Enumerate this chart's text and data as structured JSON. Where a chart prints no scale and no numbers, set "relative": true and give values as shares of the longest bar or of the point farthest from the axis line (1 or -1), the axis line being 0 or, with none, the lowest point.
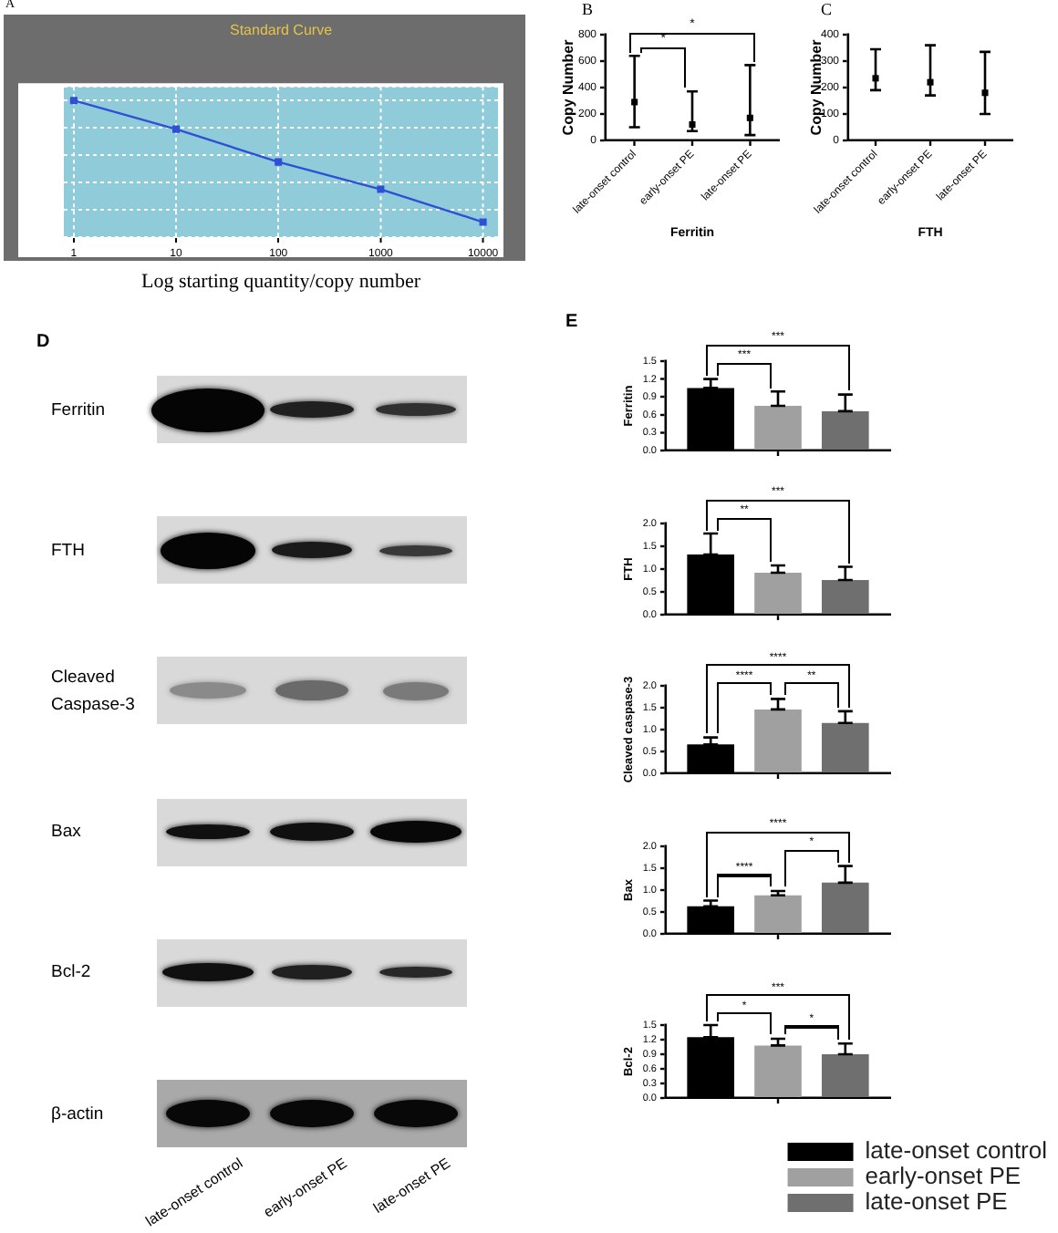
{
  "chart_data": [
    {
      "type": "line",
      "title": "A",
      "subtitle": "Standard Curve",
      "xlabel": "Log starting quantity/copy number",
      "x": [
        1,
        10,
        100,
        1000,
        10000
      ],
      "values": [
        1,
        0.79,
        0.55,
        0.35,
        0.11
      ],
      "color": "#2f4fd6",
      "relative": true,
      "xlim": [
        0.8,
        14000
      ],
      "xticks": [
        1,
        10,
        100,
        1000,
        10000
      ],
      "log": "x",
      "grid": true,
      "marker": "square"
    },
    {
      "type": "scatter",
      "title": "B",
      "xlabel": "Ferritin",
      "ylabel": "Copy Number",
      "categories": [
        "late-onset control",
        "early-onset PE",
        "late-onset PE"
      ],
      "values": [
        290,
        120,
        170
      ],
      "errors": [
        [
          100,
          640
        ],
        [
          70,
          370
        ],
        [
          40,
          570
        ]
      ],
      "color": "#000000",
      "ylim": [
        0,
        800
      ],
      "yticks": [
        0,
        200,
        400,
        600,
        800
      ],
      "marker": "square",
      "annotations": [
        "*",
        "*"
      ]
    },
    {
      "type": "scatter",
      "title": "C",
      "xlabel": "FTH",
      "ylabel": "Copy Number",
      "categories": [
        "late-onset control",
        "early-onset PE",
        "late-onset PE"
      ],
      "values": [
        235,
        220,
        180
      ],
      "errors": [
        [
          190,
          345
        ],
        [
          170,
          360
        ],
        [
          100,
          335
        ]
      ],
      "color": "#000000",
      "ylim": [
        0,
        400
      ],
      "yticks": [
        0,
        100,
        200,
        300,
        400
      ],
      "marker": "square"
    },
    {
      "type": "other",
      "title": "D",
      "categories": [
        "late-onset control",
        "early-onset PE",
        "late-onset PE"
      ],
      "y_categories": [
        "Ferritin",
        "FTH",
        "Cleaved Caspase-3",
        "Bax",
        "Bcl-2",
        "β-actin"
      ]
    },
    {
      "type": "bar",
      "title": "E",
      "ylabel": "Ferritin",
      "categories": [
        null
      ],
      "series": [
        {
          "color": "#000000",
          "values": [
            1.05
          ],
          "errors": [
            [
              1.05,
              1.2
            ]
          ]
        },
        {
          "color": "#a0a0a0",
          "values": [
            0.75
          ],
          "errors": [
            [
              0.75,
              0.99
            ]
          ]
        },
        {
          "color": "#6f6f6f",
          "values": [
            0.66
          ],
          "errors": [
            [
              0.66,
              0.94
            ]
          ]
        }
      ],
      "ylim": [
        0,
        1.5
      ],
      "yticks": [
        {
          "value": 0,
          "label": "0.0"
        },
        0.3,
        0.6,
        0.9,
        1.2,
        1.5
      ],
      "annotations": [
        "***",
        "***"
      ]
    },
    {
      "type": "bar",
      "ylabel": "FTH",
      "categories": [
        null
      ],
      "series": [
        {
          "color": "#000000",
          "values": [
            1.32
          ],
          "errors": [
            [
              1.32,
              1.78
            ]
          ]
        },
        {
          "color": "#a0a0a0",
          "values": [
            0.92
          ],
          "errors": [
            [
              0.92,
              1.08
            ]
          ]
        },
        {
          "color": "#6f6f6f",
          "values": [
            0.76
          ],
          "errors": [
            [
              0.76,
              1.05
            ]
          ]
        }
      ],
      "ylim": [
        0,
        2
      ],
      "yticks": [
        {
          "value": 0,
          "label": "0.0"
        },
        0.5,
        {
          "value": 1,
          "label": "1.0"
        },
        1.5,
        {
          "value": 2,
          "label": "2.0"
        }
      ],
      "annotations": [
        "**",
        "***"
      ]
    },
    {
      "type": "bar",
      "ylabel": "Cleaved caspase-3",
      "categories": [
        null
      ],
      "series": [
        {
          "color": "#000000",
          "values": [
            0.66
          ],
          "errors": [
            [
              0.66,
              0.82
            ]
          ]
        },
        {
          "color": "#a0a0a0",
          "values": [
            1.46
          ],
          "errors": [
            [
              1.46,
              1.7
            ]
          ]
        },
        {
          "color": "#6f6f6f",
          "values": [
            1.15
          ],
          "errors": [
            [
              1.15,
              1.42
            ]
          ]
        }
      ],
      "ylim": [
        0,
        2
      ],
      "yticks": [
        {
          "value": 0,
          "label": "0.0"
        },
        0.5,
        {
          "value": 1,
          "label": "1.0"
        },
        1.5,
        {
          "value": 2,
          "label": "2.0"
        }
      ],
      "annotations": [
        "****",
        "**",
        "****"
      ]
    },
    {
      "type": "bar",
      "ylabel": "Bax",
      "categories": [
        null
      ],
      "series": [
        {
          "color": "#000000",
          "values": [
            0.63
          ],
          "errors": [
            [
              0.63,
              0.76
            ]
          ]
        },
        {
          "color": "#a0a0a0",
          "values": [
            0.88
          ],
          "errors": [
            [
              0.88,
              0.98
            ]
          ]
        },
        {
          "color": "#6f6f6f",
          "values": [
            1.17
          ],
          "errors": [
            [
              1.17,
              1.55
            ]
          ]
        }
      ],
      "ylim": [
        0,
        2
      ],
      "yticks": [
        {
          "value": 0,
          "label": "0.0"
        },
        0.5,
        {
          "value": 1,
          "label": "1.0"
        },
        1.5,
        {
          "value": 2,
          "label": "2.0"
        }
      ],
      "annotations": [
        "****",
        "*",
        "****"
      ]
    },
    {
      "type": "bar",
      "ylabel": "Bcl-2",
      "categories": [
        null
      ],
      "series": [
        {
          "name": "late-onset control",
          "color": "#000000",
          "values": [
            1.25
          ],
          "errors": [
            [
              1.25,
              1.5
            ]
          ]
        },
        {
          "name": "early-onset PE",
          "color": "#a0a0a0",
          "values": [
            1.08
          ],
          "errors": [
            [
              1.08,
              1.22
            ]
          ]
        },
        {
          "name": "late-onset PE",
          "color": "#6f6f6f",
          "values": [
            0.9
          ],
          "errors": [
            [
              0.9,
              1.12
            ]
          ]
        }
      ],
      "ylim": [
        0,
        1.5
      ],
      "yticks": [
        {
          "value": 0,
          "label": "0.0"
        },
        0.3,
        0.6,
        0.9,
        1.2,
        1.5
      ],
      "annotations": [
        "*",
        "*",
        "***"
      ],
      "legend": "bottom right"
    }
  ]
}
